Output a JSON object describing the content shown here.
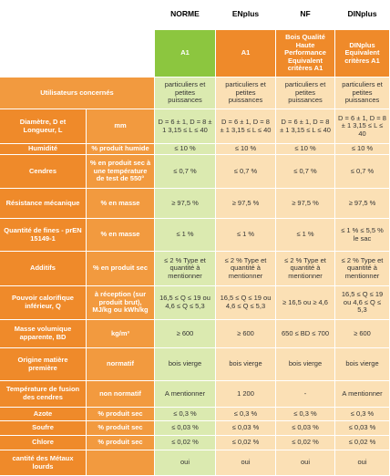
{
  "columns": [
    "NORME",
    "ENplus",
    "NF",
    "DINplus"
  ],
  "class_row": {
    "values": [
      "A1",
      "A1",
      "Bois Qualité Haute Performance Equivalent critères A1",
      "DINplus Equivalent critères A1"
    ]
  },
  "users_row": {
    "label": "Utilisateurs concernés",
    "values": [
      "particuliers et petites puissances",
      "particuliers et petites puissances",
      "particuliers et petites puissances",
      "particuliers et petites puissances"
    ]
  },
  "rows": [
    {
      "label": "Diamètre, D et Longueur, L",
      "unit": "mm",
      "values": [
        "D = 6 ± 1, D = 8 ± 1 3,15 ≤ L ≤ 40",
        "D = 6 ± 1, D = 8 ± 1 3,15 ≤ L ≤ 40",
        "D = 6 ± 1, D = 8 ± 1 3,15 ≤ L ≤ 40",
        "D = 6 ± 1, D = 8 ± 1 3,15 ≤ L ≤ 40"
      ]
    },
    {
      "label": "Humidité",
      "unit": "% produit humide",
      "values": [
        "≤ 10 %",
        "≤ 10 %",
        "≤ 10 %",
        "≤ 10 %"
      ]
    },
    {
      "label": "Cendres",
      "unit": "% en produit sec à une température de test de 550°",
      "values": [
        "≤ 0,7 %",
        "≤ 0,7 %",
        "≤ 0,7 %",
        "≤ 0,7 %"
      ]
    },
    {
      "label": "Résistance mécanique",
      "unit": "% en masse",
      "values": [
        "≥ 97,5 %",
        "≥ 97,5 %",
        "≥ 97,5 %",
        "≥ 97,5 %"
      ]
    },
    {
      "label": "Quantité de fines - prEN 15149-1",
      "unit": "% en masse",
      "values": [
        "≤ 1 %",
        "≤ 1 %",
        "≤ 1 %",
        "≤ 1 % ≤ 5,5 % le sac"
      ]
    },
    {
      "label": "Additifs",
      "unit": "% en produit sec",
      "values": [
        "≤ 2 % Type et quantité à mentionner",
        "≤ 2 % Type et quantité à mentionner",
        "≤ 2 % Type et quantité à mentionner",
        "≤ 2 % Type et quantité à mentionner"
      ]
    },
    {
      "label": "Pouvoir calorifique inférieur, Q",
      "unit": "à réception (sur produit brut), MJ/kg ou kWh/kg",
      "values": [
        "16,5 ≤ Q ≤ 19 ou 4,6 ≤ Q ≤ 5,3",
        "16,5 ≤ Q ≤ 19 ou 4,6 ≤ Q ≤ 5,3",
        "≥ 16,5 ou ≥ 4,6",
        "16,5 ≤ Q ≤ 19 ou 4,6 ≤ Q ≤ 5,3"
      ]
    },
    {
      "label": "Masse volumique apparente, BD",
      "unit": "kg/m³",
      "values": [
        "≥ 600",
        "≥ 600",
        "650 ≤ BD ≤ 700",
        "≥ 600"
      ]
    },
    {
      "label": "Origine matière première",
      "unit": "normatif",
      "values": [
        "bois vierge",
        "bois vierge",
        "bois vierge",
        "bois vierge"
      ]
    },
    {
      "label": "Température de fusion des cendres",
      "unit": "non normatif",
      "values": [
        "A mentionner",
        "1 200",
        "-",
        "A mentionner"
      ]
    },
    {
      "label": "Azote",
      "unit": "% produit sec",
      "values": [
        "≤ 0,3 %",
        "≤ 0,3 %",
        "≤ 0,3 %",
        "≤ 0,3 %"
      ]
    },
    {
      "label": "Soufre",
      "unit": "% produit sec",
      "values": [
        "≤ 0,03 %",
        "≤ 0,03 %",
        "≤ 0,03 %",
        "≤ 0,03 %"
      ]
    },
    {
      "label": "Chlore",
      "unit": "% produit sec",
      "values": [
        "≤ 0,02 %",
        "≤ 0,02 %",
        "≤ 0,02 %",
        "≤ 0,02 %"
      ]
    },
    {
      "label": "cantité des Métaux lourds",
      "values": [
        "oui",
        "oui",
        "oui",
        "oui"
      ]
    }
  ]
}
